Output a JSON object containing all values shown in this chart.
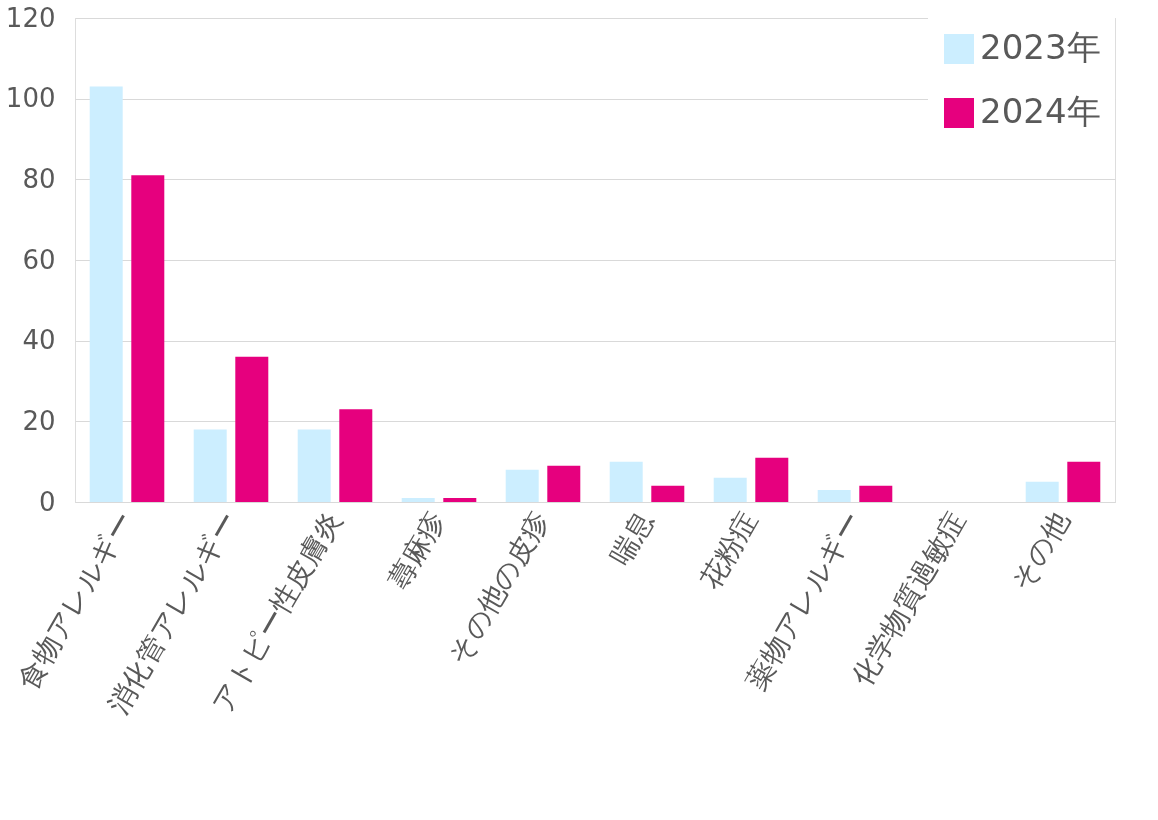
{
  "chart_data": {
    "type": "bar",
    "categories": [
      "食物アレルギー",
      "消化管アレルギー",
      "アトピー性皮膚炎",
      "蕁麻疹",
      "その他の皮疹",
      "喘息",
      "花粉症",
      "薬物アレルギー",
      "化学物質過敏症",
      "その他"
    ],
    "series": [
      {
        "name": "2023年",
        "color": "#cceeff",
        "values": [
          103,
          18,
          18,
          1,
          8,
          10,
          6,
          3,
          0,
          5
        ]
      },
      {
        "name": "2024年",
        "color": "#e6007e",
        "values": [
          81,
          36,
          23,
          1,
          9,
          4,
          11,
          4,
          0,
          10
        ]
      }
    ],
    "ylim": [
      0,
      120
    ],
    "yticks": [
      0,
      20,
      40,
      60,
      80,
      100,
      120
    ],
    "grid": "y",
    "legend": "top right"
  }
}
